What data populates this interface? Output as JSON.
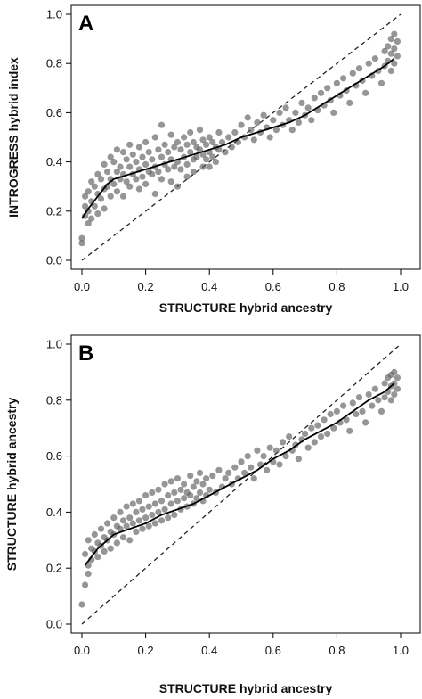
{
  "chart_data": [
    {
      "type": "scatter",
      "panel_label": "A",
      "xlabel": "STRUCTURE hybrid ancestry",
      "ylabel": "INTROGRESS hybrid index",
      "xlim": [
        0,
        1
      ],
      "ylim": [
        0,
        1
      ],
      "x_ticks": [
        0.0,
        0.2,
        0.4,
        0.6,
        0.8,
        1.0
      ],
      "y_ticks": [
        0.0,
        0.2,
        0.4,
        0.6,
        0.8,
        1.0
      ],
      "x_tick_labels": [
        "0.0",
        "0.2",
        "0.4",
        "0.6",
        "0.8",
        "1.0"
      ],
      "y_tick_labels": [
        "0.0",
        "0.2",
        "0.4",
        "0.6",
        "0.8",
        "1.0"
      ],
      "grid": false,
      "point_color": "#555555",
      "reference_line": {
        "style": "dashed",
        "x": [
          0,
          1
        ],
        "y": [
          0,
          1
        ]
      },
      "trend_line": {
        "x": [
          0.0,
          0.02,
          0.05,
          0.08,
          0.1,
          0.15,
          0.2,
          0.25,
          0.3,
          0.35,
          0.4,
          0.45,
          0.5,
          0.55,
          0.6,
          0.65,
          0.7,
          0.75,
          0.8,
          0.85,
          0.9,
          0.95,
          0.98
        ],
        "y": [
          0.17,
          0.21,
          0.26,
          0.31,
          0.33,
          0.35,
          0.37,
          0.39,
          0.41,
          0.43,
          0.45,
          0.47,
          0.5,
          0.52,
          0.54,
          0.56,
          0.59,
          0.63,
          0.67,
          0.71,
          0.75,
          0.79,
          0.82
        ]
      },
      "points": [
        [
          0.0,
          0.09
        ],
        [
          0.0,
          0.07
        ],
        [
          0.01,
          0.18
        ],
        [
          0.01,
          0.22
        ],
        [
          0.01,
          0.26
        ],
        [
          0.02,
          0.15
        ],
        [
          0.02,
          0.28
        ],
        [
          0.02,
          0.2
        ],
        [
          0.03,
          0.32
        ],
        [
          0.03,
          0.24
        ],
        [
          0.03,
          0.17
        ],
        [
          0.04,
          0.3
        ],
        [
          0.04,
          0.22
        ],
        [
          0.05,
          0.35
        ],
        [
          0.05,
          0.27
        ],
        [
          0.05,
          0.19
        ],
        [
          0.06,
          0.33
        ],
        [
          0.06,
          0.25
        ],
        [
          0.07,
          0.39
        ],
        [
          0.07,
          0.29
        ],
        [
          0.07,
          0.21
        ],
        [
          0.08,
          0.36
        ],
        [
          0.08,
          0.3
        ],
        [
          0.09,
          0.42
        ],
        [
          0.09,
          0.33
        ],
        [
          0.09,
          0.26
        ],
        [
          0.1,
          0.4
        ],
        [
          0.1,
          0.31
        ],
        [
          0.11,
          0.45
        ],
        [
          0.11,
          0.36
        ],
        [
          0.11,
          0.28
        ],
        [
          0.12,
          0.38
        ],
        [
          0.12,
          0.33
        ],
        [
          0.13,
          0.44
        ],
        [
          0.13,
          0.35
        ],
        [
          0.13,
          0.26
        ],
        [
          0.14,
          0.41
        ],
        [
          0.14,
          0.32
        ],
        [
          0.15,
          0.47
        ],
        [
          0.15,
          0.38
        ],
        [
          0.15,
          0.3
        ],
        [
          0.16,
          0.43
        ],
        [
          0.16,
          0.35
        ],
        [
          0.17,
          0.4
        ],
        [
          0.17,
          0.33
        ],
        [
          0.18,
          0.46
        ],
        [
          0.18,
          0.37
        ],
        [
          0.18,
          0.29
        ],
        [
          0.19,
          0.42
        ],
        [
          0.19,
          0.34
        ],
        [
          0.2,
          0.48
        ],
        [
          0.2,
          0.39
        ],
        [
          0.2,
          0.31
        ],
        [
          0.21,
          0.44
        ],
        [
          0.21,
          0.36
        ],
        [
          0.22,
          0.41
        ],
        [
          0.22,
          0.35
        ],
        [
          0.23,
          0.5
        ],
        [
          0.23,
          0.38
        ],
        [
          0.23,
          0.27
        ],
        [
          0.24,
          0.45
        ],
        [
          0.24,
          0.36
        ],
        [
          0.25,
          0.55
        ],
        [
          0.25,
          0.42
        ],
        [
          0.25,
          0.33
        ],
        [
          0.26,
          0.47
        ],
        [
          0.26,
          0.39
        ],
        [
          0.27,
          0.44
        ],
        [
          0.27,
          0.37
        ],
        [
          0.28,
          0.51
        ],
        [
          0.28,
          0.41
        ],
        [
          0.28,
          0.32
        ],
        [
          0.29,
          0.46
        ],
        [
          0.29,
          0.38
        ],
        [
          0.3,
          0.48
        ],
        [
          0.3,
          0.4
        ],
        [
          0.3,
          0.3
        ],
        [
          0.31,
          0.45
        ],
        [
          0.31,
          0.37
        ],
        [
          0.32,
          0.5
        ],
        [
          0.32,
          0.42
        ],
        [
          0.33,
          0.47
        ],
        [
          0.33,
          0.39
        ],
        [
          0.33,
          0.34
        ],
        [
          0.34,
          0.52
        ],
        [
          0.34,
          0.44
        ],
        [
          0.35,
          0.48
        ],
        [
          0.35,
          0.41
        ],
        [
          0.35,
          0.36
        ],
        [
          0.36,
          0.46
        ],
        [
          0.36,
          0.42
        ],
        [
          0.37,
          0.53
        ],
        [
          0.37,
          0.45
        ],
        [
          0.38,
          0.49
        ],
        [
          0.38,
          0.43
        ],
        [
          0.38,
          0.38
        ],
        [
          0.39,
          0.47
        ],
        [
          0.39,
          0.41
        ],
        [
          0.4,
          0.5
        ],
        [
          0.4,
          0.44
        ],
        [
          0.4,
          0.38
        ],
        [
          0.41,
          0.48
        ],
        [
          0.41,
          0.42
        ],
        [
          0.42,
          0.46
        ],
        [
          0.42,
          0.4
        ],
        [
          0.43,
          0.52
        ],
        [
          0.43,
          0.45
        ],
        [
          0.44,
          0.48
        ],
        [
          0.45,
          0.44
        ],
        [
          0.46,
          0.5
        ],
        [
          0.47,
          0.46
        ],
        [
          0.48,
          0.52
        ],
        [
          0.49,
          0.48
        ],
        [
          0.5,
          0.55
        ],
        [
          0.51,
          0.5
        ],
        [
          0.52,
          0.58
        ],
        [
          0.53,
          0.53
        ],
        [
          0.54,
          0.49
        ],
        [
          0.55,
          0.56
        ],
        [
          0.56,
          0.52
        ],
        [
          0.57,
          0.59
        ],
        [
          0.58,
          0.54
        ],
        [
          0.59,
          0.5
        ],
        [
          0.6,
          0.57
        ],
        [
          0.61,
          0.53
        ],
        [
          0.62,
          0.6
        ],
        [
          0.63,
          0.55
        ],
        [
          0.64,
          0.62
        ],
        [
          0.65,
          0.57
        ],
        [
          0.66,
          0.53
        ],
        [
          0.67,
          0.6
        ],
        [
          0.68,
          0.56
        ],
        [
          0.69,
          0.64
        ],
        [
          0.7,
          0.59
        ],
        [
          0.71,
          0.62
        ],
        [
          0.72,
          0.57
        ],
        [
          0.73,
          0.66
        ],
        [
          0.74,
          0.61
        ],
        [
          0.75,
          0.68
        ],
        [
          0.76,
          0.63
        ],
        [
          0.77,
          0.7
        ],
        [
          0.78,
          0.65
        ],
        [
          0.79,
          0.6
        ],
        [
          0.8,
          0.72
        ],
        [
          0.81,
          0.67
        ],
        [
          0.82,
          0.74
        ],
        [
          0.83,
          0.69
        ],
        [
          0.84,
          0.64
        ],
        [
          0.85,
          0.76
        ],
        [
          0.86,
          0.71
        ],
        [
          0.87,
          0.78
        ],
        [
          0.88,
          0.73
        ],
        [
          0.89,
          0.68
        ],
        [
          0.9,
          0.8
        ],
        [
          0.91,
          0.75
        ],
        [
          0.92,
          0.82
        ],
        [
          0.93,
          0.77
        ],
        [
          0.94,
          0.72
        ],
        [
          0.95,
          0.85
        ],
        [
          0.95,
          0.79
        ],
        [
          0.96,
          0.87
        ],
        [
          0.96,
          0.81
        ],
        [
          0.97,
          0.9
        ],
        [
          0.97,
          0.84
        ],
        [
          0.97,
          0.77
        ],
        [
          0.98,
          0.92
        ],
        [
          0.98,
          0.86
        ],
        [
          0.98,
          0.8
        ],
        [
          0.99,
          0.89
        ],
        [
          0.99,
          0.83
        ]
      ]
    },
    {
      "type": "scatter",
      "panel_label": "B",
      "xlabel": "STRUCTURE hybrid ancestry",
      "ylabel": "STRUCTURE hybrid ancestry",
      "xlim": [
        0,
        1
      ],
      "ylim": [
        0,
        1
      ],
      "x_ticks": [
        0.0,
        0.2,
        0.4,
        0.6,
        0.8,
        1.0
      ],
      "y_ticks": [
        0.0,
        0.2,
        0.4,
        0.6,
        0.8,
        1.0
      ],
      "x_tick_labels": [
        "0.0",
        "0.2",
        "0.4",
        "0.6",
        "0.8",
        "1.0"
      ],
      "y_tick_labels": [
        "0.0",
        "0.2",
        "0.4",
        "0.6",
        "0.8",
        "1.0"
      ],
      "grid": false,
      "point_color": "#555555",
      "reference_line": {
        "style": "dashed",
        "x": [
          0,
          1
        ],
        "y": [
          0,
          1
        ]
      },
      "trend_line": {
        "x": [
          0.01,
          0.03,
          0.05,
          0.08,
          0.1,
          0.15,
          0.2,
          0.25,
          0.3,
          0.35,
          0.4,
          0.45,
          0.5,
          0.55,
          0.6,
          0.65,
          0.7,
          0.75,
          0.8,
          0.85,
          0.9,
          0.95,
          0.98
        ],
        "y": [
          0.21,
          0.24,
          0.27,
          0.3,
          0.32,
          0.34,
          0.36,
          0.39,
          0.41,
          0.43,
          0.46,
          0.49,
          0.52,
          0.55,
          0.59,
          0.62,
          0.66,
          0.69,
          0.72,
          0.76,
          0.8,
          0.83,
          0.86
        ]
      },
      "points": [
        [
          0.0,
          0.07
        ],
        [
          0.01,
          0.14
        ],
        [
          0.01,
          0.25
        ],
        [
          0.02,
          0.21
        ],
        [
          0.02,
          0.3
        ],
        [
          0.02,
          0.18
        ],
        [
          0.03,
          0.27
        ],
        [
          0.03,
          0.23
        ],
        [
          0.04,
          0.32
        ],
        [
          0.04,
          0.26
        ],
        [
          0.05,
          0.29
        ],
        [
          0.05,
          0.24
        ],
        [
          0.06,
          0.34
        ],
        [
          0.06,
          0.28
        ],
        [
          0.07,
          0.31
        ],
        [
          0.07,
          0.26
        ],
        [
          0.08,
          0.36
        ],
        [
          0.08,
          0.3
        ],
        [
          0.09,
          0.33
        ],
        [
          0.09,
          0.27
        ],
        [
          0.1,
          0.38
        ],
        [
          0.1,
          0.32
        ],
        [
          0.11,
          0.35
        ],
        [
          0.11,
          0.29
        ],
        [
          0.12,
          0.4
        ],
        [
          0.12,
          0.34
        ],
        [
          0.13,
          0.37
        ],
        [
          0.13,
          0.31
        ],
        [
          0.14,
          0.42
        ],
        [
          0.14,
          0.35
        ],
        [
          0.15,
          0.38
        ],
        [
          0.15,
          0.3
        ],
        [
          0.16,
          0.43
        ],
        [
          0.16,
          0.36
        ],
        [
          0.17,
          0.4
        ],
        [
          0.17,
          0.33
        ],
        [
          0.18,
          0.44
        ],
        [
          0.18,
          0.37
        ],
        [
          0.19,
          0.41
        ],
        [
          0.19,
          0.34
        ],
        [
          0.2,
          0.46
        ],
        [
          0.2,
          0.38
        ],
        [
          0.21,
          0.42
        ],
        [
          0.21,
          0.35
        ],
        [
          0.22,
          0.47
        ],
        [
          0.22,
          0.39
        ],
        [
          0.23,
          0.43
        ],
        [
          0.23,
          0.36
        ],
        [
          0.24,
          0.48
        ],
        [
          0.24,
          0.4
        ],
        [
          0.25,
          0.44
        ],
        [
          0.25,
          0.37
        ],
        [
          0.26,
          0.5
        ],
        [
          0.26,
          0.41
        ],
        [
          0.27,
          0.46
        ],
        [
          0.27,
          0.38
        ],
        [
          0.28,
          0.51
        ],
        [
          0.28,
          0.43
        ],
        [
          0.29,
          0.47
        ],
        [
          0.29,
          0.39
        ],
        [
          0.3,
          0.52
        ],
        [
          0.3,
          0.44
        ],
        [
          0.31,
          0.48
        ],
        [
          0.31,
          0.41
        ],
        [
          0.32,
          0.5
        ],
        [
          0.32,
          0.45
        ],
        [
          0.33,
          0.47
        ],
        [
          0.33,
          0.42
        ],
        [
          0.34,
          0.53
        ],
        [
          0.34,
          0.46
        ],
        [
          0.35,
          0.49
        ],
        [
          0.35,
          0.43
        ],
        [
          0.36,
          0.51
        ],
        [
          0.36,
          0.45
        ],
        [
          0.37,
          0.54
        ],
        [
          0.37,
          0.47
        ],
        [
          0.38,
          0.5
        ],
        [
          0.38,
          0.44
        ],
        [
          0.39,
          0.52
        ],
        [
          0.39,
          0.46
        ],
        [
          0.4,
          0.48
        ],
        [
          0.41,
          0.53
        ],
        [
          0.42,
          0.47
        ],
        [
          0.43,
          0.55
        ],
        [
          0.44,
          0.49
        ],
        [
          0.45,
          0.52
        ],
        [
          0.46,
          0.54
        ],
        [
          0.47,
          0.5
        ],
        [
          0.48,
          0.56
        ],
        [
          0.49,
          0.52
        ],
        [
          0.5,
          0.58
        ],
        [
          0.51,
          0.54
        ],
        [
          0.52,
          0.6
        ],
        [
          0.53,
          0.56
        ],
        [
          0.54,
          0.52
        ],
        [
          0.55,
          0.62
        ],
        [
          0.56,
          0.57
        ],
        [
          0.57,
          0.6
        ],
        [
          0.58,
          0.55
        ],
        [
          0.59,
          0.63
        ],
        [
          0.6,
          0.58
        ],
        [
          0.61,
          0.62
        ],
        [
          0.62,
          0.57
        ],
        [
          0.63,
          0.65
        ],
        [
          0.64,
          0.6
        ],
        [
          0.65,
          0.67
        ],
        [
          0.66,
          0.62
        ],
        [
          0.67,
          0.64
        ],
        [
          0.68,
          0.59
        ],
        [
          0.69,
          0.66
        ],
        [
          0.7,
          0.68
        ],
        [
          0.71,
          0.63
        ],
        [
          0.72,
          0.7
        ],
        [
          0.73,
          0.65
        ],
        [
          0.74,
          0.71
        ],
        [
          0.75,
          0.67
        ],
        [
          0.76,
          0.73
        ],
        [
          0.77,
          0.68
        ],
        [
          0.78,
          0.75
        ],
        [
          0.79,
          0.7
        ],
        [
          0.8,
          0.76
        ],
        [
          0.81,
          0.72
        ],
        [
          0.82,
          0.78
        ],
        [
          0.83,
          0.73
        ],
        [
          0.84,
          0.69
        ],
        [
          0.85,
          0.79
        ],
        [
          0.86,
          0.75
        ],
        [
          0.87,
          0.81
        ],
        [
          0.88,
          0.76
        ],
        [
          0.89,
          0.72
        ],
        [
          0.9,
          0.82
        ],
        [
          0.91,
          0.78
        ],
        [
          0.92,
          0.84
        ],
        [
          0.93,
          0.8
        ],
        [
          0.94,
          0.76
        ],
        [
          0.95,
          0.86
        ],
        [
          0.95,
          0.81
        ],
        [
          0.96,
          0.88
        ],
        [
          0.96,
          0.83
        ],
        [
          0.97,
          0.89
        ],
        [
          0.97,
          0.85
        ],
        [
          0.97,
          0.8
        ],
        [
          0.98,
          0.9
        ],
        [
          0.98,
          0.86
        ],
        [
          0.98,
          0.82
        ],
        [
          0.99,
          0.88
        ],
        [
          0.99,
          0.84
        ]
      ]
    }
  ]
}
